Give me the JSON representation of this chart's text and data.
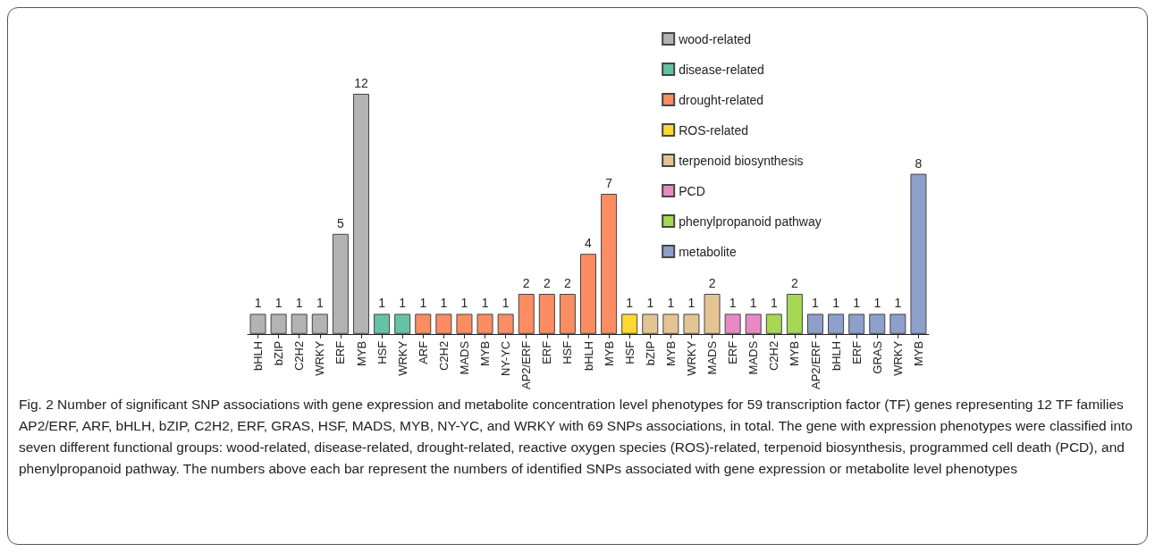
{
  "chart_data": {
    "type": "bar",
    "stacked": true,
    "data_labels": true,
    "legend": "top right",
    "categories": [
      "bHLH",
      "bZIP",
      "C2H2",
      "WRKY",
      "ERF",
      "MYB",
      "HSF",
      "WRKY",
      "ARF",
      "C2H2",
      "MADS",
      "MYB",
      "NY-YC",
      "AP2/ERF",
      "ERF",
      "HSF",
      "bHLH",
      "MYB",
      "HSF",
      "bZIP",
      "MYB",
      "WRKY",
      "MADS",
      "ERF",
      "MADS",
      "C2H2",
      "MYB",
      "AP2/ERF",
      "bHLH",
      "ERF",
      "GRAS",
      "WRKY",
      "MYB"
    ],
    "series": [
      {
        "name": "wood-related",
        "color": "#b3b3b3",
        "values": [
          1,
          1,
          1,
          1,
          5,
          12,
          null,
          null,
          null,
          null,
          null,
          null,
          null,
          null,
          null,
          null,
          null,
          null,
          null,
          null,
          null,
          null,
          null,
          null,
          null,
          null,
          null,
          null,
          null,
          null,
          null,
          null,
          null
        ]
      },
      {
        "name": "disease-related",
        "color": "#66c2a5",
        "values": [
          null,
          null,
          null,
          null,
          null,
          null,
          1,
          1,
          null,
          null,
          null,
          null,
          null,
          null,
          null,
          null,
          null,
          null,
          null,
          null,
          null,
          null,
          null,
          null,
          null,
          null,
          null,
          null,
          null,
          null,
          null,
          null,
          null
        ]
      },
      {
        "name": "drought-related",
        "color": "#fc8d62",
        "values": [
          null,
          null,
          null,
          null,
          null,
          null,
          null,
          null,
          1,
          1,
          1,
          1,
          1,
          2,
          2,
          2,
          4,
          7,
          null,
          null,
          null,
          null,
          null,
          null,
          null,
          null,
          null,
          null,
          null,
          null,
          null,
          null,
          null
        ]
      },
      {
        "name": "ROS-related",
        "color": "#ffd92f",
        "values": [
          null,
          null,
          null,
          null,
          null,
          null,
          null,
          null,
          null,
          null,
          null,
          null,
          null,
          null,
          null,
          null,
          null,
          null,
          1,
          null,
          null,
          null,
          null,
          null,
          null,
          null,
          null,
          null,
          null,
          null,
          null,
          null,
          null
        ]
      },
      {
        "name": "terpenoid biosynthesis",
        "color": "#e5c494",
        "values": [
          null,
          null,
          null,
          null,
          null,
          null,
          null,
          null,
          null,
          null,
          null,
          null,
          null,
          null,
          null,
          null,
          null,
          null,
          null,
          1,
          1,
          1,
          2,
          null,
          null,
          null,
          null,
          null,
          null,
          null,
          null,
          null,
          null
        ]
      },
      {
        "name": "PCD",
        "color": "#e78ac3",
        "values": [
          null,
          null,
          null,
          null,
          null,
          null,
          null,
          null,
          null,
          null,
          null,
          null,
          null,
          null,
          null,
          null,
          null,
          null,
          null,
          null,
          null,
          null,
          null,
          1,
          1,
          null,
          null,
          null,
          null,
          null,
          null,
          null,
          null
        ]
      },
      {
        "name": "phenylpropanoid pathway",
        "color": "#a6d854",
        "values": [
          null,
          null,
          null,
          null,
          null,
          null,
          null,
          null,
          null,
          null,
          null,
          null,
          null,
          null,
          null,
          null,
          null,
          null,
          null,
          null,
          null,
          null,
          null,
          null,
          null,
          1,
          2,
          null,
          null,
          null,
          null,
          null,
          null
        ]
      },
      {
        "name": "metabolite",
        "color": "#8da0cb",
        "values": [
          null,
          null,
          null,
          null,
          null,
          null,
          null,
          null,
          null,
          null,
          null,
          null,
          null,
          null,
          null,
          null,
          null,
          null,
          null,
          null,
          null,
          null,
          null,
          null,
          null,
          null,
          null,
          1,
          1,
          1,
          1,
          1,
          8
        ]
      }
    ],
    "annotations": [
      "Fig. 2 Number of significant SNP associations with gene expression and metabolite concentration level phenotypes for 59 transcription factor (TF) genes representing 12 TF families AP2/ERF, ARF, bHLH, bZIP, C2H2, ERF, GRAS, HSF, MADS, MYB, NY-YC, and WRKY with 69 SNPs associations, in total. The gene with expression phenotypes were classified into seven different functional groups: wood-related, disease-related, drought-related, reactive oxygen species (ROS)-related, terpenoid biosynthesis, programmed cell death (PCD), and phenylpropanoid pathway. The numbers above each bar represent the numbers of identified SNPs associated with gene expression or metabolite level phenotypes"
    ]
  }
}
